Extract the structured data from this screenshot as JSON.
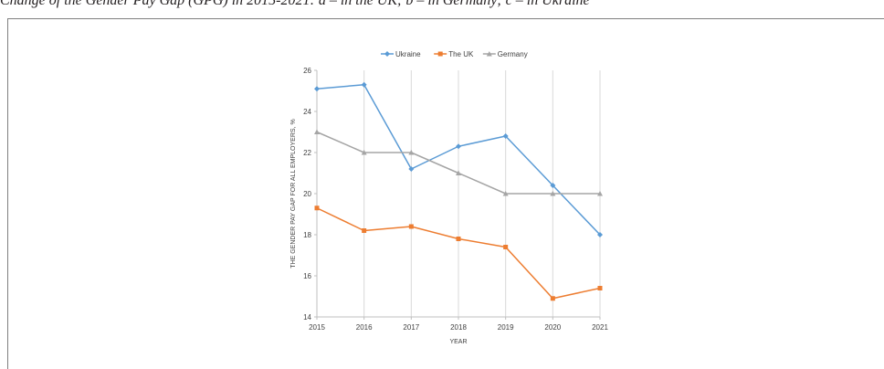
{
  "caption": "Change of the Gender Pay Gap (GPG) in 2015-2021: a – in the UK; b – in Germany; c – in Ukraine",
  "chart_data": {
    "type": "line",
    "title": "",
    "xlabel": "YEAR",
    "ylabel": "THE GENDER PAY GAP FOR ALL EMPLOYERS, %",
    "categories": [
      "2015",
      "2016",
      "2017",
      "2018",
      "2019",
      "2020",
      "2021"
    ],
    "ylim": [
      14,
      26
    ],
    "yticks": [
      14,
      16,
      18,
      20,
      22,
      24,
      26
    ],
    "grid": "vertical",
    "legend_position": "top",
    "series": [
      {
        "name": "Ukraine",
        "color": "#5b9bd5",
        "marker": "diamond",
        "values": [
          25.1,
          25.3,
          21.2,
          22.3,
          22.8,
          20.4,
          18.0
        ]
      },
      {
        "name": "The UK",
        "color": "#ed7d31",
        "marker": "square",
        "values": [
          19.3,
          18.2,
          18.4,
          17.8,
          17.4,
          14.9,
          15.4
        ]
      },
      {
        "name": "Germany",
        "color": "#a5a5a5",
        "marker": "triangle",
        "values": [
          23.0,
          22.0,
          22.0,
          21.0,
          20.0,
          20.0,
          20.0
        ]
      }
    ]
  }
}
